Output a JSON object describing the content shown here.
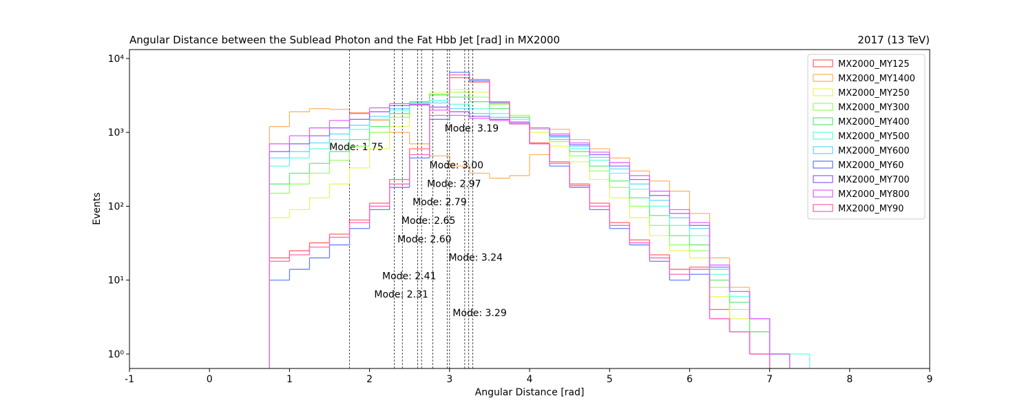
{
  "chart_data": {
    "type": "histogram",
    "title": "Angular Distance between the Sublead Photon and the Fat Hbb Jet [rad] in MX2000",
    "subtitle": "2017 (13 TeV)",
    "x_label": "Angular Distance [rad]",
    "y_label": "Events",
    "log_y": true,
    "legend": "upper right",
    "xlim": [
      -1,
      9
    ],
    "ylim": [
      0.637,
      13200
    ],
    "xticks": [
      -1,
      0,
      1,
      2,
      3,
      4,
      5,
      6,
      7,
      8,
      9
    ],
    "yticks": [
      {
        "value": 1,
        "label": "10⁰"
      },
      {
        "value": 10,
        "label": "10¹"
      },
      {
        "value": 100,
        "label": "10²"
      },
      {
        "value": 1000,
        "label": "10³"
      },
      {
        "value": 10000,
        "label": "10⁴"
      }
    ],
    "bins": [
      0.75,
      1.0,
      1.25,
      1.5,
      1.75,
      2.0,
      2.25,
      2.5,
      2.75,
      3.0,
      3.25,
      3.5,
      3.75,
      4.0,
      4.25,
      4.5,
      4.75,
      5.0,
      5.25,
      5.5,
      5.75,
      6.0,
      6.25,
      6.5,
      6.75,
      7.0,
      7.25,
      7.5
    ],
    "series": [
      {
        "name": "MX2000_MY125",
        "color": "#ff6666",
        "mode": 3.19,
        "mode_label": "Mode: 3.19",
        "values": [
          20,
          25,
          32,
          42,
          65,
          110,
          230,
          600,
          2200,
          5500,
          4800,
          2600,
          1350,
          720,
          400,
          200,
          110,
          60,
          35,
          22,
          14,
          15,
          4,
          2,
          1,
          1,
          null
        ]
      },
      {
        "name": "MX2000_MY1400",
        "color": "#ffb366",
        "mode": 1.75,
        "mode_label": "Mode: 1.75",
        "values": [
          1200,
          1900,
          2100,
          2050,
          1850,
          1450,
          1000,
          700,
          480,
          350,
          280,
          240,
          260,
          500,
          1100,
          800,
          600,
          450,
          300,
          220,
          160,
          80,
          20,
          8,
          3,
          1,
          null
        ]
      },
      {
        "name": "MX2000_MY250",
        "color": "#e8f566",
        "mode": 3.0,
        "mode_label": "Mode: 3.00",
        "values": [
          70,
          90,
          130,
          200,
          330,
          600,
          1200,
          2300,
          3500,
          3800,
          3500,
          2600,
          1700,
          1000,
          650,
          400,
          230,
          130,
          70,
          40,
          25,
          20,
          6,
          3,
          2,
          1,
          null
        ]
      },
      {
        "name": "MX2000_MY300",
        "color": "#9dff66",
        "mode": 2.97,
        "mode_label": "Mode: 2.97",
        "values": [
          150,
          200,
          280,
          420,
          650,
          1000,
          1600,
          2500,
          3300,
          3500,
          3000,
          2400,
          1700,
          1100,
          750,
          480,
          300,
          180,
          100,
          55,
          30,
          25,
          8,
          4,
          2,
          1,
          null
        ]
      },
      {
        "name": "MX2000_MY400",
        "color": "#66e87a",
        "mode": 2.79,
        "mode_label": "Mode: 2.79",
        "values": [
          200,
          280,
          380,
          550,
          800,
          1200,
          1800,
          2600,
          3200,
          3000,
          2600,
          2100,
          1600,
          1150,
          800,
          550,
          350,
          220,
          130,
          75,
          40,
          30,
          10,
          5,
          2,
          1,
          null
        ]
      },
      {
        "name": "MX2000_MY500",
        "color": "#66ffe0",
        "mode": 2.65,
        "mode_label": "Mode: 2.65",
        "values": [
          350,
          450,
          600,
          800,
          1100,
          1500,
          2000,
          2500,
          2700,
          2400,
          2100,
          1800,
          1500,
          1150,
          850,
          600,
          420,
          280,
          170,
          100,
          55,
          40,
          12,
          6,
          3,
          1,
          1
        ]
      },
      {
        "name": "MX2000_MY600",
        "color": "#66d9ff",
        "mode": 2.6,
        "mode_label": "Mode: 2.60",
        "values": [
          450,
          550,
          720,
          950,
          1250,
          1650,
          2100,
          2500,
          2500,
          2100,
          1800,
          1600,
          1400,
          1150,
          880,
          650,
          460,
          320,
          200,
          120,
          70,
          50,
          14,
          7,
          3,
          1,
          null
        ]
      },
      {
        "name": "MX2000_MY60",
        "color": "#6680ff",
        "mode": 3.24,
        "mode_label": "Mode: 3.24",
        "values": [
          10,
          14,
          20,
          30,
          50,
          90,
          180,
          450,
          1500,
          6500,
          5000,
          2500,
          1300,
          700,
          350,
          180,
          90,
          50,
          30,
          18,
          10,
          12,
          3,
          2,
          1,
          null,
          null
        ]
      },
      {
        "name": "MX2000_MY700",
        "color": "#9966ff",
        "mode": 2.41,
        "mode_label": "Mode: 2.41",
        "values": [
          550,
          700,
          900,
          1150,
          1500,
          1900,
          2300,
          2400,
          2200,
          1900,
          1650,
          1500,
          1350,
          1150,
          900,
          680,
          500,
          350,
          230,
          140,
          80,
          55,
          15,
          7,
          3,
          1,
          null
        ]
      },
      {
        "name": "MX2000_MY800",
        "color": "#e066ff",
        "mode": 2.31,
        "mode_label": "Mode: 2.31",
        "values": [
          700,
          900,
          1150,
          1450,
          1800,
          2150,
          2450,
          2350,
          2000,
          1700,
          1550,
          1450,
          1350,
          1150,
          950,
          720,
          540,
          390,
          260,
          160,
          90,
          60,
          16,
          7,
          3,
          1,
          null
        ]
      },
      {
        "name": "MX2000_MY90",
        "color": "#ff66b3",
        "mode": 3.29,
        "mode_label": "Mode: 3.29",
        "values": [
          18,
          22,
          28,
          38,
          60,
          100,
          200,
          500,
          1700,
          6000,
          5200,
          2600,
          1300,
          700,
          380,
          190,
          100,
          55,
          32,
          20,
          12,
          14,
          3,
          2,
          1,
          null,
          null
        ]
      }
    ]
  }
}
